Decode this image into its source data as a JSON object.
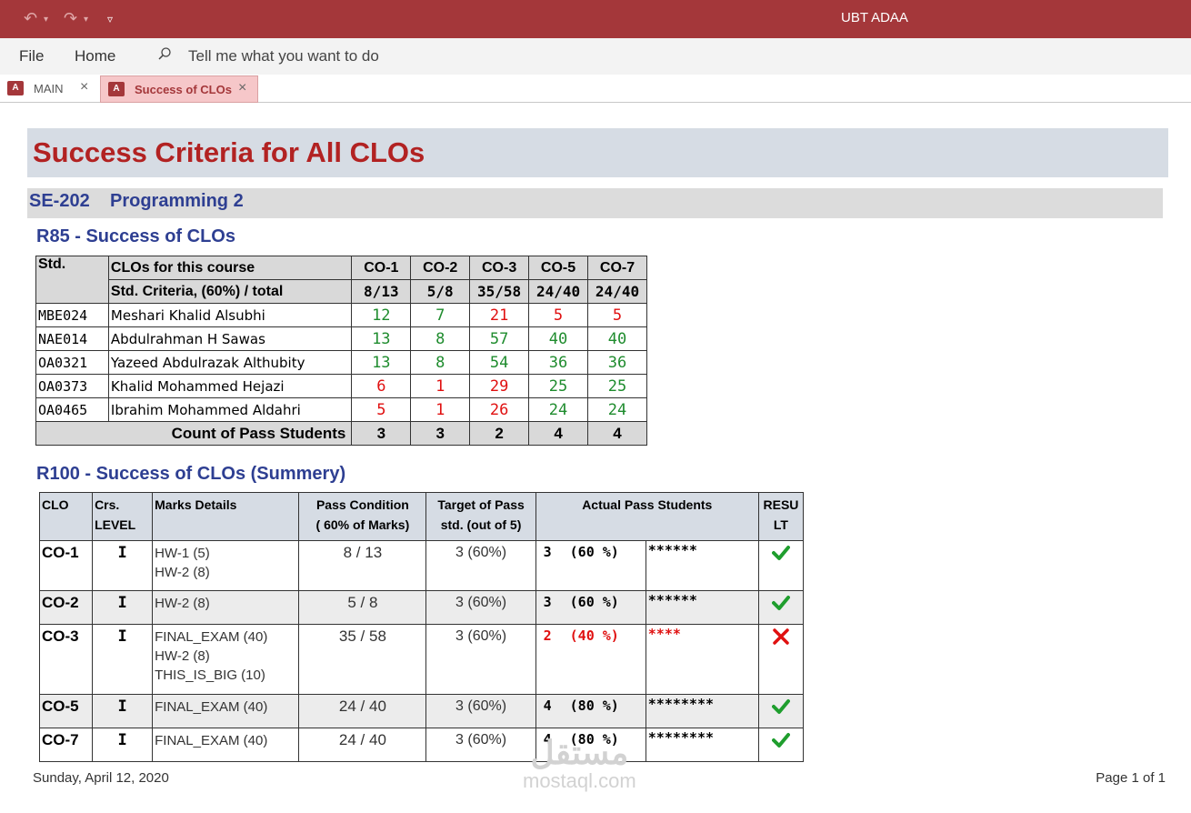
{
  "window": {
    "title": "UBT ADAA"
  },
  "menu": {
    "file": "File",
    "home": "Home",
    "search_placeholder": "Tell me what you want to do"
  },
  "tabs": [
    {
      "label": "MAIN"
    },
    {
      "label": "Success of CLOs"
    }
  ],
  "report": {
    "title": "Success Criteria for All CLOs",
    "course_code": "SE-202",
    "course_name": "Programming 2",
    "r85": {
      "title": "R85 - Success of CLOs",
      "std_header": "Std.",
      "clos_header": "CLOs for this course",
      "criteria_label": "Std. Criteria, (60%) / total",
      "columns": [
        "CO-1",
        "CO-2",
        "CO-3",
        "CO-5",
        "CO-7"
      ],
      "criteria": [
        "8/13",
        "5/8",
        "35/58",
        "24/40",
        "24/40"
      ],
      "rows": [
        {
          "id": "MBE024",
          "name": "Meshari Khalid Alsubhi",
          "scores": [
            "12",
            "7",
            "21",
            "5",
            "5"
          ]
        },
        {
          "id": "NAE014",
          "name": "Abdulrahman H Sawas",
          "scores": [
            "13",
            "8",
            "57",
            "40",
            "40"
          ]
        },
        {
          "id": "OA0321",
          "name": "Yazeed Abdulrazak Althubity",
          "scores": [
            "13",
            "8",
            "54",
            "36",
            "36"
          ]
        },
        {
          "id": "OA0373",
          "name": "Khalid Mohammed Hejazi",
          "scores": [
            "6",
            "1",
            "29",
            "25",
            "25"
          ]
        },
        {
          "id": "OA0465",
          "name": "Ibrahim Mohammed Aldahri",
          "scores": [
            "5",
            "1",
            "26",
            "24",
            "24"
          ]
        }
      ],
      "count_label": "Count of Pass Students",
      "counts": [
        "3",
        "3",
        "2",
        "4",
        "4"
      ]
    },
    "r100": {
      "title": "R100 - Success of CLOs (Summery)",
      "headers": {
        "clo": "CLO",
        "level_1": "Crs.",
        "level_2": "LEVEL",
        "marks": "Marks Details",
        "cond_1": "Pass Condition",
        "cond_2": "( 60% of Marks)",
        "target_1": "Target of Pass",
        "target_2": "std. (out of 5)",
        "actual": "Actual Pass Students",
        "result_1": "RESU",
        "result_2": "LT"
      },
      "rows": [
        {
          "clo": "CO-1",
          "level": "I",
          "marks": [
            "HW-1 (5)",
            "HW-2 (8)"
          ],
          "condition": "8 / 13",
          "target": "3 (60%)",
          "actual_count": "3",
          "actual_pct": "(60 %)",
          "stars": "******",
          "pass": true
        },
        {
          "clo": "CO-2",
          "level": "I",
          "marks": [
            "HW-2 (8)"
          ],
          "condition": "5 / 8",
          "target": "3 (60%)",
          "actual_count": "3",
          "actual_pct": "(60 %)",
          "stars": "******",
          "pass": true
        },
        {
          "clo": "CO-3",
          "level": "I",
          "marks": [
            "FINAL_EXAM (40)",
            "HW-2 (8)",
            "THIS_IS_BIG (10)"
          ],
          "condition": "35 / 58",
          "target": "3 (60%)",
          "actual_count": "2",
          "actual_pct": "(40 %)",
          "stars": "****",
          "pass": false
        },
        {
          "clo": "CO-5",
          "level": "I",
          "marks": [
            "FINAL_EXAM (40)"
          ],
          "condition": "24 / 40",
          "target": "3 (60%)",
          "actual_count": "4",
          "actual_pct": "(80 %)",
          "stars": "********",
          "pass": true
        },
        {
          "clo": "CO-7",
          "level": "I",
          "marks": [
            "FINAL_EXAM (40)"
          ],
          "condition": "24 / 40",
          "target": "3 (60%)",
          "actual_count": "4",
          "actual_pct": "(80 %)",
          "stars": "********",
          "pass": true
        }
      ]
    },
    "footer": {
      "date": "Sunday, April 12, 2020",
      "page": "Page 1 of 1"
    },
    "watermark": {
      "arabic": "مستقل",
      "latin": "mostaql.com"
    }
  },
  "colors": {
    "title_bar": "#a4373a",
    "accent_red": "#b22222",
    "heading_blue": "#2e3f92",
    "pass_green": "#1f8c2e",
    "fail_red": "#e01010"
  },
  "icons": [
    "undo-icon",
    "redo-icon",
    "customize-qat-icon",
    "search-icon",
    "access-icon",
    "close-icon",
    "check-icon",
    "cross-icon"
  ]
}
